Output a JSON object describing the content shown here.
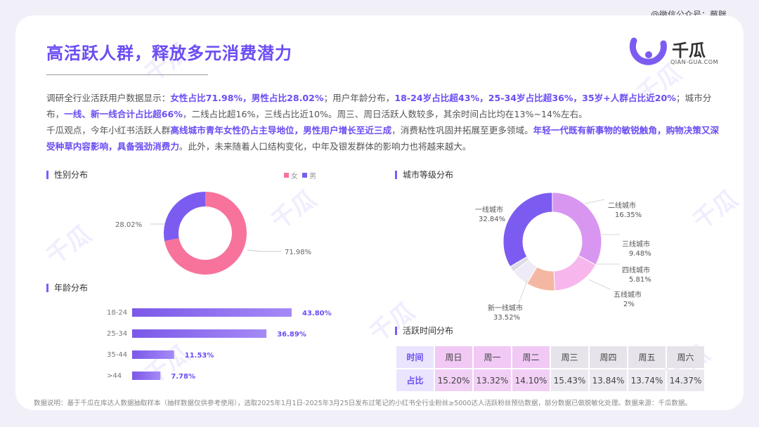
{
  "watermark_top": "@微信公众号：莓胖",
  "title": "高活跃人群，释放多元消费潜力",
  "logo": {
    "name": "千瓜",
    "sub": "QIAN-GUA.COM"
  },
  "intro": {
    "p1": [
      {
        "t": "调研全行业活跃用户数据显示：",
        "h": false
      },
      {
        "t": "女性占比71.98%，男性占比28.02%",
        "h": true
      },
      {
        "t": "；用户年龄分布，",
        "h": false
      },
      {
        "t": "18-24岁占比超43%，25-34岁占比超36%，35岁+人群占比近20%",
        "h": true
      },
      {
        "t": "；城市分布，",
        "h": false
      },
      {
        "t": "一线、新一线合计占比超66%",
        "h": true
      },
      {
        "t": "，二线占比超16%，三线占比近10%。周三、周日活跃人数较多，其余时间占比均在13%~14%左右。",
        "h": false
      }
    ],
    "p2": [
      {
        "t": "千瓜观点，今年小红书活跃人群",
        "h": false
      },
      {
        "t": "高线城市青年女性仍占主导地位，男性用户增长至近三成",
        "h": true
      },
      {
        "t": "，消费粘性巩固并拓展至更多领域。",
        "h": false
      },
      {
        "t": "年轻一代既有新事物的敏锐触角，购物决策又深受种草内容影响，具备强劲消费力",
        "h": true
      },
      {
        "t": "。此外，未来随着人口结构变化，中年及银发群体的影响力也将越来越大。",
        "h": false
      }
    ]
  },
  "colors": {
    "accent": "#6c4cf3",
    "female": "#f7739b",
    "male": "#7c5cf0"
  },
  "sections": {
    "gender": "性别分布",
    "city": "城市等级分布",
    "age": "年龄分布",
    "time": "活跃时间分布"
  },
  "chart_data": [
    {
      "type": "pie",
      "id": "gender",
      "title": "性别分布",
      "legend": [
        "女",
        "男"
      ],
      "legend_position": "top-right",
      "slices": [
        {
          "name": "女",
          "label": "71.98%",
          "value": 71.98,
          "color": "#f7739b"
        },
        {
          "name": "男",
          "label": "28.02%",
          "value": 28.02,
          "color": "#7c5cf0"
        }
      ]
    },
    {
      "type": "pie",
      "id": "city",
      "title": "城市等级分布",
      "slices": [
        {
          "name": "一线城市",
          "label": "32.84%",
          "value": 32.84,
          "color": "#d996f0"
        },
        {
          "name": "二线城市",
          "label": "16.35%",
          "value": 16.35,
          "color": "#f7b6ec"
        },
        {
          "name": "三线城市",
          "label": "9.48%",
          "value": 9.48,
          "color": "#f4b8a2"
        },
        {
          "name": "四线城市",
          "label": "5.81%",
          "value": 5.81,
          "color": "#eeeaf6"
        },
        {
          "name": "五线城市",
          "label": "2%",
          "value": 2,
          "color": "#dedbe6"
        },
        {
          "name": "新一线城市",
          "label": "33.52%",
          "value": 33.52,
          "color": "#7c5cf0"
        }
      ]
    },
    {
      "type": "bar",
      "id": "age",
      "title": "年龄分布",
      "orientation": "horizontal",
      "categories": [
        "18-24",
        "25-34",
        "35-44",
        ">44"
      ],
      "values": [
        43.8,
        36.89,
        11.53,
        7.78
      ],
      "value_labels": [
        "43.80%",
        "36.89%",
        "11.53%",
        "7.78%"
      ]
    },
    {
      "type": "table",
      "id": "time",
      "title": "活跃时间分布",
      "row_headers": [
        "时间",
        "占比"
      ],
      "columns": [
        "周日",
        "周一",
        "周二",
        "周三",
        "周四",
        "周五",
        "周六"
      ],
      "values": [
        "15.20%",
        "13.32%",
        "14.10%",
        "15.43%",
        "13.84%",
        "13.74%",
        "14.37%"
      ],
      "highlight_cols": [
        0,
        1,
        2
      ]
    }
  ],
  "footnote": "数据说明：基于千瓜在库达人数据抽取样本（抽样数据仅供参考使用），选取2025年1月1日-2025年3月25日发布过笔记的小红书全行业粉丝≥5000达人活跃粉丝预估数据，部分数据已做脱敏化处理。数据来源：千瓜数据。"
}
